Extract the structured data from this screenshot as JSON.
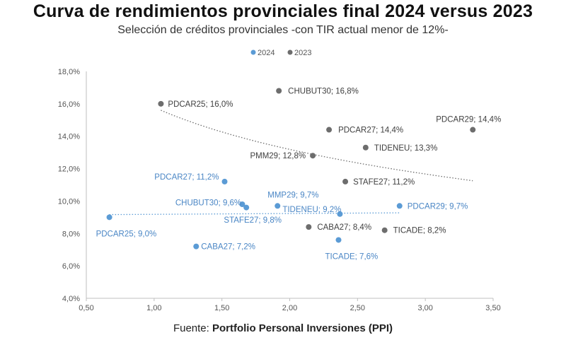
{
  "title": "Curva de rendimientos provinciales final 2024 versus 2023",
  "subtitle": "Selección de créditos provinciales -con TIR actual menor de 12%-",
  "source_prefix": "Fuente: ",
  "source_bold": "Portfolio Personal Inversiones (PPI)",
  "colors": {
    "series_2024": "#5b9bd5",
    "series_2023": "#6d6d6d",
    "axis": "#bfbfbf",
    "label_2024": "#4a86c5",
    "label_2023": "#404040"
  },
  "chart_data": {
    "type": "scatter",
    "title": "Curva de rendimientos provinciales final 2024 versus 2023",
    "xlim": [
      0.5,
      3.5
    ],
    "ylim": [
      4.0,
      18.0
    ],
    "x_ticks": [
      0.5,
      1.0,
      1.5,
      2.0,
      2.5,
      3.0,
      3.5
    ],
    "x_tick_labels": [
      "0,50",
      "1,00",
      "1,50",
      "2,00",
      "2,50",
      "3,00",
      "3,50"
    ],
    "y_ticks": [
      4,
      6,
      8,
      10,
      12,
      14,
      16,
      18
    ],
    "y_tick_labels": [
      "4,0%",
      "6,0%",
      "8,0%",
      "10,0%",
      "12,0%",
      "14,0%",
      "16,0%",
      "18,0%"
    ],
    "legend": [
      "2024",
      "2023"
    ],
    "legend_position": "top-center",
    "grid": false,
    "series": [
      {
        "name": "2024",
        "trendline": "dotted",
        "points": [
          {
            "x": 0.67,
            "y": 9.0,
            "label": "PDCAR25; 9,0%"
          },
          {
            "x": 1.31,
            "y": 7.2,
            "label": "CABA27; 7,2%"
          },
          {
            "x": 1.52,
            "y": 11.2,
            "label": "PDCAR27; 11,2%"
          },
          {
            "x": 1.65,
            "y": 9.8,
            "label": "STAFE27; 9,8%"
          },
          {
            "x": 1.68,
            "y": 9.6,
            "label": "CHUBUT30; 9,6%"
          },
          {
            "x": 1.91,
            "y": 9.7,
            "label": "MMP29; 9,7%"
          },
          {
            "x": 2.37,
            "y": 9.2,
            "label": "TIDENEU; 9,2%"
          },
          {
            "x": 2.36,
            "y": 7.6,
            "label": "TICADE; 7,6%"
          },
          {
            "x": 2.81,
            "y": 9.7,
            "label": "PDCAR29; 9,7%"
          }
        ]
      },
      {
        "name": "2023",
        "trendline": "dotted",
        "points": [
          {
            "x": 1.05,
            "y": 16.0,
            "label": "PDCAR25; 16,0%"
          },
          {
            "x": 1.92,
            "y": 16.8,
            "label": "CHUBUT30; 16,8%"
          },
          {
            "x": 2.17,
            "y": 12.8,
            "label": "PMM29; 12,8%"
          },
          {
            "x": 2.29,
            "y": 14.4,
            "label": "PDCAR27; 14,4%"
          },
          {
            "x": 2.41,
            "y": 11.2,
            "label": "STAFE27; 11,2%"
          },
          {
            "x": 2.56,
            "y": 13.3,
            "label": "TIDENEU; 13,3%"
          },
          {
            "x": 2.14,
            "y": 8.4,
            "label": "CABA27; 8,4%"
          },
          {
            "x": 2.7,
            "y": 8.2,
            "label": "TICADE; 8,2%"
          },
          {
            "x": 3.35,
            "y": 14.4,
            "label": "PDCAR29; 14,4%"
          }
        ]
      }
    ]
  }
}
